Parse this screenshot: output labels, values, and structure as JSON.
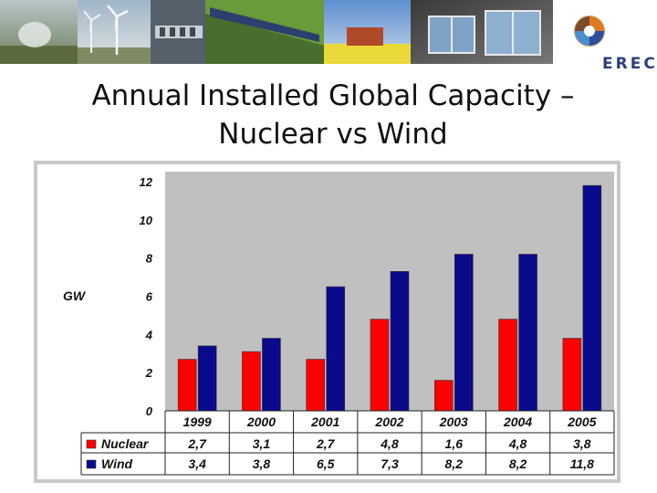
{
  "slide": {
    "title_line1": "Annual Installed Global Capacity –",
    "title_line2": "Nuclear vs Wind",
    "logo_text": "EREC"
  },
  "chart_data": {
    "type": "bar",
    "categories": [
      "1999",
      "2000",
      "2001",
      "2002",
      "2003",
      "2004",
      "2005"
    ],
    "series": [
      {
        "name": "Nuclear",
        "color": "#ff0000",
        "values": [
          2.7,
          3.1,
          2.7,
          4.8,
          1.6,
          4.8,
          3.8
        ],
        "labels": [
          "2,7",
          "3,1",
          "2,7",
          "4,8",
          "1,6",
          "4,8",
          "3,8"
        ]
      },
      {
        "name": "Wind",
        "color": "#0a0a8c",
        "values": [
          3.4,
          3.8,
          6.5,
          7.3,
          8.2,
          8.2,
          11.8
        ],
        "labels": [
          "3,4",
          "3,8",
          "6,5",
          "7,3",
          "8,2",
          "8,2",
          "11,8"
        ]
      }
    ],
    "ylabel": "GW",
    "ylim": [
      0,
      12
    ],
    "yticks": [
      0,
      2,
      4,
      6,
      8,
      10,
      12
    ],
    "data_table": true,
    "grid": false
  }
}
